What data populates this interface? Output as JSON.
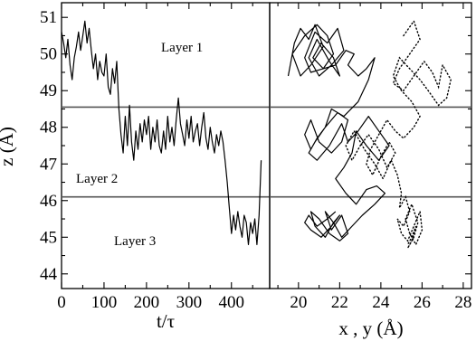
{
  "chart_data": [
    {
      "type": "line",
      "panel": "left",
      "xlabel": "t/τ",
      "ylabel": "z (Å)",
      "xlim": [
        0,
        490
      ],
      "ylim": [
        43.6,
        51.4
      ],
      "xticks": [
        "0",
        "100",
        "200",
        "300",
        "400"
      ],
      "yticks": [
        "44",
        "45",
        "46",
        "47",
        "48",
        "49",
        "50",
        "51"
      ],
      "layer_boundaries": [
        48.55,
        46.1
      ],
      "annotations": [
        "Layer 1",
        "Layer 2",
        "Layer 3"
      ],
      "series": [
        {
          "style": "solid",
          "x": [
            0,
            5,
            10,
            15,
            20,
            25,
            30,
            35,
            40,
            45,
            50,
            55,
            60,
            65,
            70,
            75,
            80,
            85,
            90,
            95,
            100,
            105,
            110,
            115,
            120,
            125,
            130,
            135,
            140,
            145,
            150,
            155,
            160,
            165,
            170,
            175,
            180,
            185,
            190,
            195,
            200,
            205,
            210,
            215,
            220,
            225,
            230,
            235,
            240,
            245,
            250,
            255,
            260,
            265,
            270,
            275,
            280,
            285,
            290,
            295,
            300,
            305,
            310,
            315,
            320,
            325,
            330,
            335,
            340,
            345,
            350,
            355,
            360,
            365,
            370,
            375,
            380,
            385,
            390,
            395,
            400,
            405,
            410,
            415,
            420,
            425,
            430,
            435,
            440,
            445,
            450,
            455,
            460,
            465,
            470
          ],
          "y": [
            50.6,
            50.3,
            49.9,
            50.4,
            49.7,
            49.3,
            49.9,
            50.2,
            50.6,
            50.1,
            50.5,
            50.9,
            50.3,
            50.7,
            50.1,
            49.6,
            50.0,
            49.3,
            49.8,
            49.5,
            49.4,
            50.0,
            49.1,
            48.9,
            49.6,
            49.2,
            49.8,
            48.5,
            47.8,
            47.3,
            48.3,
            47.5,
            48.6,
            47.6,
            47.1,
            47.9,
            47.4,
            48.1,
            47.6,
            48.2,
            47.8,
            48.3,
            47.4,
            48.0,
            47.6,
            48.2,
            47.5,
            47.3,
            47.9,
            47.4,
            48.3,
            47.6,
            48.0,
            47.5,
            48.2,
            48.8,
            48.1,
            47.8,
            47.5,
            48.2,
            47.7,
            48.3,
            47.6,
            47.9,
            48.1,
            47.5,
            48.0,
            48.4,
            47.7,
            47.4,
            48.0,
            47.6,
            47.3,
            47.8,
            47.5,
            47.9,
            47.6,
            47.1,
            46.5,
            45.8,
            45.1,
            45.6,
            45.2,
            45.7,
            45.3,
            45.0,
            45.6,
            45.4,
            44.8,
            45.4,
            45.1,
            45.5,
            44.8,
            45.6,
            47.1
          ]
        }
      ]
    },
    {
      "type": "line",
      "panel": "right",
      "xlabel": "x , y (Å)",
      "xlim": [
        18.6,
        28.4
      ],
      "ylim": [
        43.6,
        51.4
      ],
      "xticks": [
        "20",
        "22",
        "24",
        "26",
        "28"
      ],
      "series": [
        {
          "style": "solid",
          "x": [
            19.5,
            19.8,
            20.1,
            20.5,
            20.8,
            21.2,
            20.6,
            20.1,
            19.7,
            20.3,
            20.9,
            21.4,
            21.7,
            21.2,
            20.6,
            20.3,
            20.8,
            21.4,
            21.9,
            22.2,
            21.6,
            21.0,
            20.5,
            20.9,
            21.5,
            22.0,
            21.7,
            21.1,
            20.7,
            21.2,
            21.8,
            22.3,
            22.7,
            22.4,
            22.9,
            23.3,
            23.7,
            23.4,
            22.9,
            22.2,
            21.6,
            21.3,
            20.9,
            20.6,
            20.3,
            20.6,
            21.0,
            21.6,
            22.1,
            22.4,
            21.9,
            21.3,
            20.8,
            20.5,
            20.9,
            21.5,
            22.1,
            22.4,
            22.9,
            23.4,
            23.9,
            24.4,
            23.9,
            23.3,
            22.8,
            22.6,
            22.2,
            21.8,
            22.3,
            22.8,
            23.3,
            23.8,
            24.2,
            23.7,
            23.1,
            22.6,
            22.1,
            21.7,
            21.3,
            21.6,
            22.1,
            22.4,
            22.0,
            21.5,
            21.0,
            20.6,
            20.8,
            21.3,
            21.7,
            22.0,
            21.6,
            21.1,
            20.6,
            20.3,
            20.5,
            20.9,
            21.4,
            21.8
          ],
          "y": [
            49.4,
            50.3,
            50.7,
            50.4,
            50.8,
            50.2,
            49.7,
            49.4,
            50.0,
            50.5,
            50.8,
            50.5,
            50.0,
            49.6,
            49.5,
            49.9,
            50.6,
            50.3,
            50.7,
            50.1,
            49.7,
            49.4,
            49.9,
            50.4,
            49.8,
            49.4,
            49.9,
            50.3,
            49.9,
            49.6,
            49.7,
            50.1,
            50.0,
            49.7,
            49.4,
            49.6,
            49.9,
            49.3,
            48.7,
            48.3,
            48.5,
            48.0,
            47.7,
            47.4,
            47.8,
            48.2,
            47.6,
            47.3,
            47.6,
            48.2,
            48.4,
            48.0,
            47.6,
            47.3,
            47.1,
            47.5,
            48.1,
            47.6,
            47.9,
            48.3,
            47.9,
            47.5,
            47.1,
            47.5,
            47.9,
            47.3,
            46.9,
            46.6,
            46.2,
            45.9,
            46.3,
            46.4,
            46.2,
            45.9,
            45.6,
            45.3,
            45.0,
            45.4,
            45.7,
            45.2,
            45.6,
            45.1,
            44.9,
            45.1,
            45.5,
            45.7,
            45.3,
            45.0,
            45.4,
            45.6,
            45.3,
            45.0,
            45.2,
            45.4,
            45.6,
            45.3,
            45.5,
            45.7
          ]
        },
        {
          "style": "dotted",
          "x": [
            25.1,
            25.6,
            25.9,
            25.4,
            24.9,
            24.6,
            25.1,
            25.6,
            26.1,
            26.5,
            26.8,
            27.0,
            27.4,
            27.2,
            26.8,
            26.3,
            25.9,
            25.4,
            24.9,
            24.6,
            25.0,
            25.5,
            25.9,
            25.6,
            25.1,
            24.7,
            24.3,
            23.9,
            23.5,
            23.3,
            23.6,
            24.0,
            24.4,
            24.7,
            24.3,
            23.9,
            23.4,
            23.0,
            22.6,
            22.3,
            22.7,
            23.2,
            23.7,
            24.1,
            24.5,
            24.8,
            25.0,
            24.9,
            25.2,
            25.4,
            25.1,
            24.8,
            25.0,
            25.3,
            25.6,
            25.9,
            26.0,
            25.7,
            25.4,
            25.2,
            25.5,
            25.8,
            25.6,
            25.3,
            25.5,
            25.7,
            25.5,
            25.3
          ],
          "y": [
            50.5,
            50.9,
            50.4,
            50.0,
            49.6,
            49.2,
            49.0,
            49.4,
            49.8,
            49.5,
            49.1,
            49.7,
            49.3,
            48.8,
            48.6,
            49.0,
            49.3,
            49.6,
            49.9,
            49.4,
            49.0,
            48.7,
            48.3,
            48.0,
            47.7,
            47.9,
            48.2,
            47.8,
            47.4,
            47.0,
            46.7,
            47.2,
            47.6,
            47.3,
            46.9,
            47.4,
            47.8,
            47.5,
            47.1,
            47.5,
            47.9,
            47.4,
            47.0,
            46.6,
            47.1,
            46.7,
            46.2,
            45.8,
            46.1,
            45.7,
            45.3,
            45.5,
            45.1,
            44.9,
            45.3,
            45.7,
            45.2,
            44.8,
            45.1,
            45.5,
            45.9,
            45.4,
            45.0,
            44.7,
            44.9,
            45.3,
            45.0,
            44.8
          ]
        }
      ]
    }
  ]
}
